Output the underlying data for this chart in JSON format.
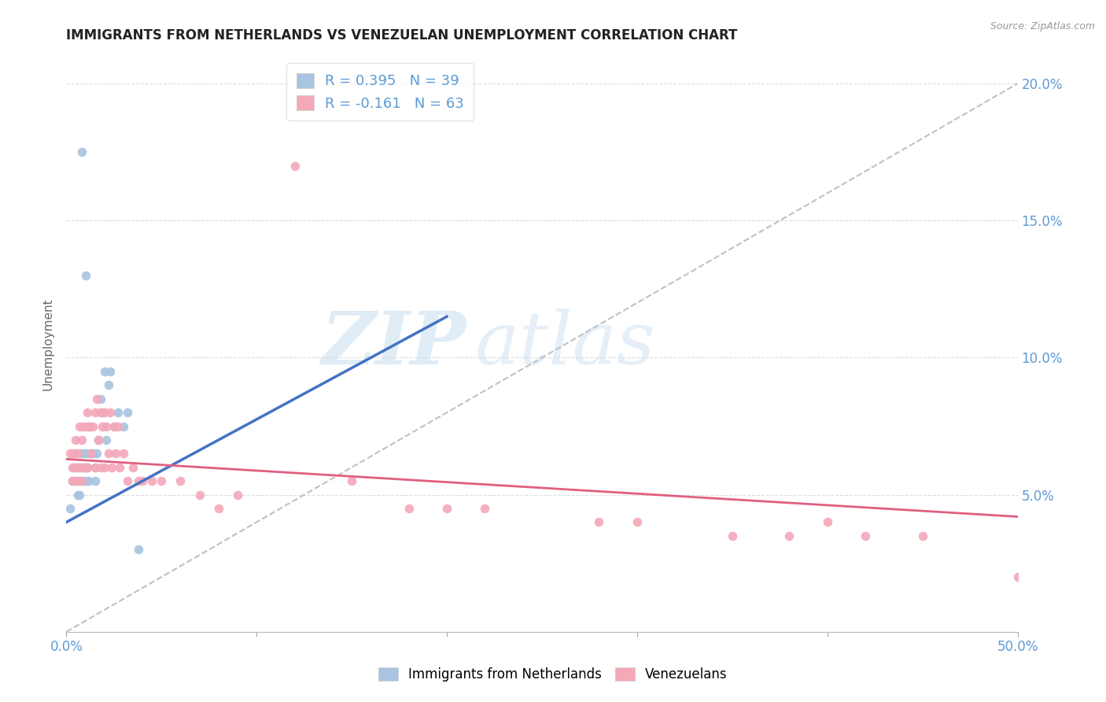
{
  "title": "IMMIGRANTS FROM NETHERLANDS VS VENEZUELAN UNEMPLOYMENT CORRELATION CHART",
  "source": "Source: ZipAtlas.com",
  "ylabel": "Unemployment",
  "xlim": [
    0.0,
    0.5
  ],
  "ylim": [
    0.0,
    0.21
  ],
  "xticks": [
    0.0,
    0.1,
    0.2,
    0.3,
    0.4,
    0.5
  ],
  "xticklabels": [
    "0.0%",
    "",
    "",
    "",
    "",
    "50.0%"
  ],
  "yticks_right": [
    0.05,
    0.1,
    0.15,
    0.2
  ],
  "yticklabels_right": [
    "5.0%",
    "10.0%",
    "15.0%",
    "20.0%"
  ],
  "blue_color": "#a8c4e0",
  "pink_color": "#f4a8b8",
  "blue_line_color": "#4472c4",
  "pink_line_color": "#e06080",
  "dashed_line_color": "#c0c0c0",
  "R_blue": 0.395,
  "N_blue": 39,
  "R_pink": -0.161,
  "N_pink": 63,
  "legend_label_blue": "Immigrants from Netherlands",
  "legend_label_pink": "Venezuelans",
  "watermark_zip": "ZIP",
  "watermark_atlas": "atlas",
  "blue_scatter_x": [
    0.002,
    0.003,
    0.004,
    0.005,
    0.005,
    0.006,
    0.006,
    0.007,
    0.007,
    0.007,
    0.008,
    0.008,
    0.009,
    0.009,
    0.01,
    0.01,
    0.011,
    0.011,
    0.012,
    0.012,
    0.013,
    0.014,
    0.015,
    0.015,
    0.016,
    0.017,
    0.018,
    0.019,
    0.02,
    0.021,
    0.022,
    0.023,
    0.025,
    0.027,
    0.03,
    0.032,
    0.038,
    0.008,
    0.01
  ],
  "blue_scatter_y": [
    0.045,
    0.055,
    0.06,
    0.055,
    0.065,
    0.06,
    0.05,
    0.06,
    0.055,
    0.05,
    0.065,
    0.055,
    0.065,
    0.06,
    0.06,
    0.055,
    0.065,
    0.06,
    0.075,
    0.055,
    0.065,
    0.065,
    0.06,
    0.055,
    0.065,
    0.07,
    0.085,
    0.08,
    0.095,
    0.07,
    0.09,
    0.095,
    0.075,
    0.08,
    0.075,
    0.08,
    0.03,
    0.175,
    0.13
  ],
  "pink_scatter_x": [
    0.002,
    0.003,
    0.003,
    0.004,
    0.004,
    0.005,
    0.005,
    0.006,
    0.006,
    0.007,
    0.007,
    0.008,
    0.008,
    0.009,
    0.009,
    0.01,
    0.01,
    0.011,
    0.011,
    0.012,
    0.013,
    0.014,
    0.015,
    0.015,
    0.016,
    0.017,
    0.018,
    0.018,
    0.019,
    0.02,
    0.02,
    0.021,
    0.022,
    0.023,
    0.024,
    0.025,
    0.026,
    0.027,
    0.028,
    0.03,
    0.032,
    0.035,
    0.038,
    0.04,
    0.045,
    0.05,
    0.06,
    0.07,
    0.08,
    0.09,
    0.12,
    0.15,
    0.18,
    0.22,
    0.28,
    0.35,
    0.38,
    0.4,
    0.42,
    0.45,
    0.2,
    0.3,
    0.5
  ],
  "pink_scatter_y": [
    0.065,
    0.06,
    0.055,
    0.065,
    0.055,
    0.07,
    0.06,
    0.065,
    0.055,
    0.075,
    0.06,
    0.07,
    0.055,
    0.075,
    0.06,
    0.075,
    0.06,
    0.08,
    0.06,
    0.075,
    0.065,
    0.075,
    0.08,
    0.06,
    0.085,
    0.07,
    0.08,
    0.06,
    0.075,
    0.08,
    0.06,
    0.075,
    0.065,
    0.08,
    0.06,
    0.075,
    0.065,
    0.075,
    0.06,
    0.065,
    0.055,
    0.06,
    0.055,
    0.055,
    0.055,
    0.055,
    0.055,
    0.05,
    0.045,
    0.05,
    0.17,
    0.055,
    0.045,
    0.045,
    0.04,
    0.035,
    0.035,
    0.04,
    0.035,
    0.035,
    0.045,
    0.04,
    0.02
  ],
  "blue_trend_x": [
    0.0,
    0.2
  ],
  "blue_trend_y": [
    0.04,
    0.115
  ],
  "pink_trend_x": [
    0.0,
    0.5
  ],
  "pink_trend_y": [
    0.063,
    0.042
  ],
  "diag_line_x": [
    0.0,
    0.5
  ],
  "diag_line_y": [
    0.0,
    0.2
  ]
}
